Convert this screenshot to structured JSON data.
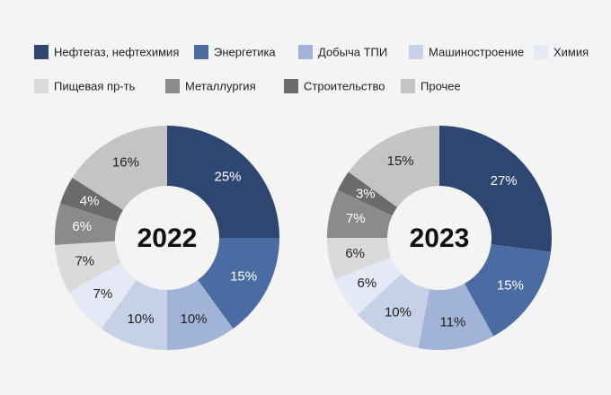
{
  "chart_data": {
    "type": "donut",
    "categories": [
      "Нефтегаз, нефтехимия",
      "Энергетика",
      "Добыча ТПИ",
      "Машиностроение",
      "Химия",
      "Пищевая пр-ть",
      "Металлургия",
      "Строительство",
      "Прочее"
    ],
    "colors": [
      "#2e4670",
      "#4a6ca2",
      "#a1b3d6",
      "#c6d1e8",
      "#e4e9f5",
      "#dadada",
      "#8b8b8b",
      "#6b6b6b",
      "#c4c4c4"
    ],
    "series": [
      {
        "name": "2022",
        "values": [
          25,
          15,
          10,
          10,
          7,
          7,
          6,
          4,
          16
        ],
        "value_labels": [
          "25%",
          "15%",
          "10%",
          "10%",
          "7%",
          "7%",
          "6%",
          "4%",
          "16%"
        ]
      },
      {
        "name": "2023",
        "values": [
          27,
          15,
          11,
          10,
          6,
          6,
          7,
          3,
          15
        ],
        "value_labels": [
          "27%",
          "15%",
          "11%",
          "10%",
          "6%",
          "6%",
          "7%",
          "3%",
          "15%"
        ]
      }
    ]
  }
}
